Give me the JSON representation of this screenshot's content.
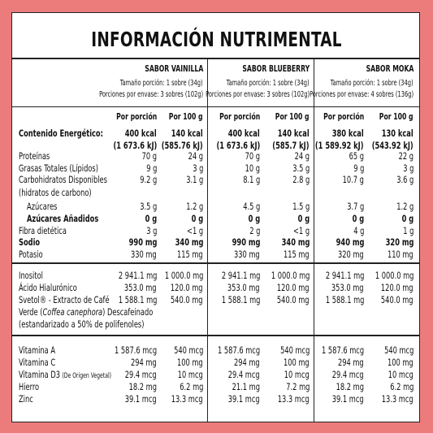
{
  "title": "INFORMACIÓN NUTRIMENTAL",
  "flavors": [
    {
      "name": "SABOR VAINILLA",
      "portion": "Tamaño porción: 1 sobre (34g)",
      "servings": "Porciones por envase: 3 sobres (102g)"
    },
    {
      "name": "SABOR BLUEBERRY",
      "portion": "Tamaño porción: 1 sobre (34g)",
      "servings": "Porciones por envase: 3 sobres (102g)"
    },
    {
      "name": "SABOR MOKA",
      "portion": "Tamaño porción: 1 sobre (34g)",
      "servings": "Porciones por envase: 4 sobres (136g)"
    }
  ],
  "col_headers": {
    "per_portion": "Por porción",
    "per_100": "Por 100 g"
  },
  "energy": {
    "label": "Contenido Energético:",
    "values": [
      [
        "400 kcal",
        "(1 673.6 kJ)"
      ],
      [
        "140 kcal",
        "(585.76 kJ)"
      ],
      [
        "400 kcal",
        "(1 673.6 kJ)"
      ],
      [
        "140 kcal",
        "(585.7 kJ)"
      ],
      [
        "380 kcal",
        "(1 589.92 kJ)"
      ],
      [
        "130 kcal",
        "(543.92 kJ)"
      ]
    ]
  },
  "macros": [
    {
      "label": "Proteínas",
      "values": [
        "70 g",
        "24 g",
        "70 g",
        "24 g",
        "65 g",
        "22 g"
      ]
    },
    {
      "label": "Grasas Totales (Lípidos)",
      "values": [
        "9 g",
        "3 g",
        "10 g",
        "3.5 g",
        "9 g",
        "3 g"
      ]
    },
    {
      "label": "Carbohidratos Disponibles",
      "values": [
        "9.2 g",
        "3.1 g",
        "8.1 g",
        "2.8 g",
        "10.7 g",
        "3.6 g"
      ]
    },
    {
      "label": "(hidratos de carbono)",
      "values": [
        "",
        "",
        "",
        "",
        "",
        ""
      ]
    },
    {
      "label": "Azúcares",
      "values": [
        "3.5 g",
        "1.2 g",
        "4.5 g",
        "1.5 g",
        "3.7 g",
        "1.2 g"
      ]
    },
    {
      "label": "Azúcares Añadidos",
      "values": [
        "0 g",
        "0 g",
        "0 g",
        "0 g",
        "0 g",
        "0 g"
      ]
    },
    {
      "label": "Fibra dietética",
      "values": [
        "3 g",
        "<1 g",
        "2 g",
        "<1 g",
        "4 g",
        "1 g"
      ]
    },
    {
      "label": "Sodio",
      "values": [
        "990 mg",
        "340 mg",
        "990 mg",
        "340 mg",
        "940 mg",
        "320 mg"
      ]
    },
    {
      "label": "Potasio",
      "values": [
        "330 mg",
        "115 mg",
        "330 mg",
        "115 mg",
        "320 mg",
        "110 mg"
      ]
    }
  ],
  "actives": [
    {
      "label": "Inositol",
      "values": [
        "2 941.1 mg",
        "1 000.0 mg",
        "2 941.1 mg",
        "1 000.0 mg",
        "2 941.1 mg",
        "1 000.0 mg"
      ]
    },
    {
      "label": "Ácido Hialurónico",
      "values": [
        "353.0 mg",
        "120.0 mg",
        "353.0 mg",
        "120.0 mg",
        "353.0 mg",
        "120.0 mg"
      ]
    },
    {
      "label": "Svetol® - Extracto de Café",
      "values": [
        "1 588.1 mg",
        "540.0 mg",
        "1 588.1 mg",
        "540.0 mg",
        "1 588.1 mg",
        "540.0 mg"
      ]
    }
  ],
  "svetol_extra": {
    "l1a": "Verde (",
    "l1i": "Coffea canephora",
    "l1b": ") Descafeinado",
    "l2": "(estandarizado a 50% de polifenoles)"
  },
  "vitamins": [
    {
      "label": "Vitamina A",
      "small": "",
      "values": [
        "1 587.6 mcg",
        "540 mcg",
        "1 587.6 mcg",
        "540 mcg",
        "1 587.6 mcg",
        "540 mcg"
      ]
    },
    {
      "label": "Vitamina C",
      "small": "",
      "values": [
        "294 mg",
        "100 mg",
        "294 mg",
        "100 mg",
        "294 mg",
        "100 mg"
      ]
    },
    {
      "label": "Vitamina D3",
      "small": "(De Origen Vegetal)",
      "values": [
        "29.4 mcg",
        "10 mcg",
        "29.4 mcg",
        "10 mcg",
        "29.4 mcg",
        "10 mcg"
      ]
    },
    {
      "label": "Hierro",
      "small": "",
      "values": [
        "18.2 mg",
        "6.2 mg",
        "21.1 mg",
        "7.2 mg",
        "18.2 mg",
        "6.2 mg"
      ]
    },
    {
      "label": "Zinc",
      "small": "",
      "values": [
        "39.1 mcg",
        "13.3 mcg",
        "39.1 mcg",
        "13.3 mcg",
        "39.1 mcg",
        "13.3 mcg"
      ]
    }
  ]
}
